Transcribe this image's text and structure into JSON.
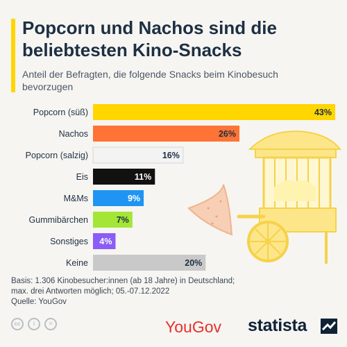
{
  "title": "Popcorn und Nachos sind die beliebtesten Kino-Snacks",
  "subtitle": "Anteil der Befragten, die folgende Snacks beim Kinobesuch bevorzugen",
  "chart_data": {
    "type": "bar",
    "orientation": "horizontal",
    "categories": [
      "Popcorn (süß)",
      "Nachos",
      "Popcorn (salzig)",
      "Eis",
      "M&Ms",
      "Gummibärchen",
      "Sonstiges",
      "Keine"
    ],
    "values": [
      43,
      26,
      16,
      11,
      9,
      7,
      4,
      20
    ],
    "value_labels": [
      "43%",
      "26%",
      "16%",
      "11%",
      "9%",
      "7%",
      "4%",
      "20%"
    ],
    "colors": [
      "#ffd600",
      "#ff7335",
      "#f3f3f3",
      "#111111",
      "#1f94f3",
      "#a3e635",
      "#8b5cf6",
      "#c9c9c9"
    ],
    "label_colors": [
      "#1d2f44",
      "#1d2f44",
      "#1d2f44",
      "#ffffff",
      "#ffffff",
      "#1d2f44",
      "#ffffff",
      "#1d2f44"
    ],
    "xlim": [
      0,
      43
    ],
    "grid": false
  },
  "footer": {
    "basis_line1": "Basis: 1.306 Kinobesucher:innen (ab 18 Jahre) in Deutschland;",
    "basis_line2": "max. drei Antworten möglich;  05.-07.12.2022",
    "source": "Quelle: YouGov"
  },
  "logos": {
    "yougov": "YouGov",
    "statista": "statista"
  },
  "icons": [
    "cc-icon",
    "attribution-icon",
    "no-derivatives-icon",
    "popcorn-cart-icon",
    "nacho-chip-icon",
    "statista-mark-icon"
  ]
}
